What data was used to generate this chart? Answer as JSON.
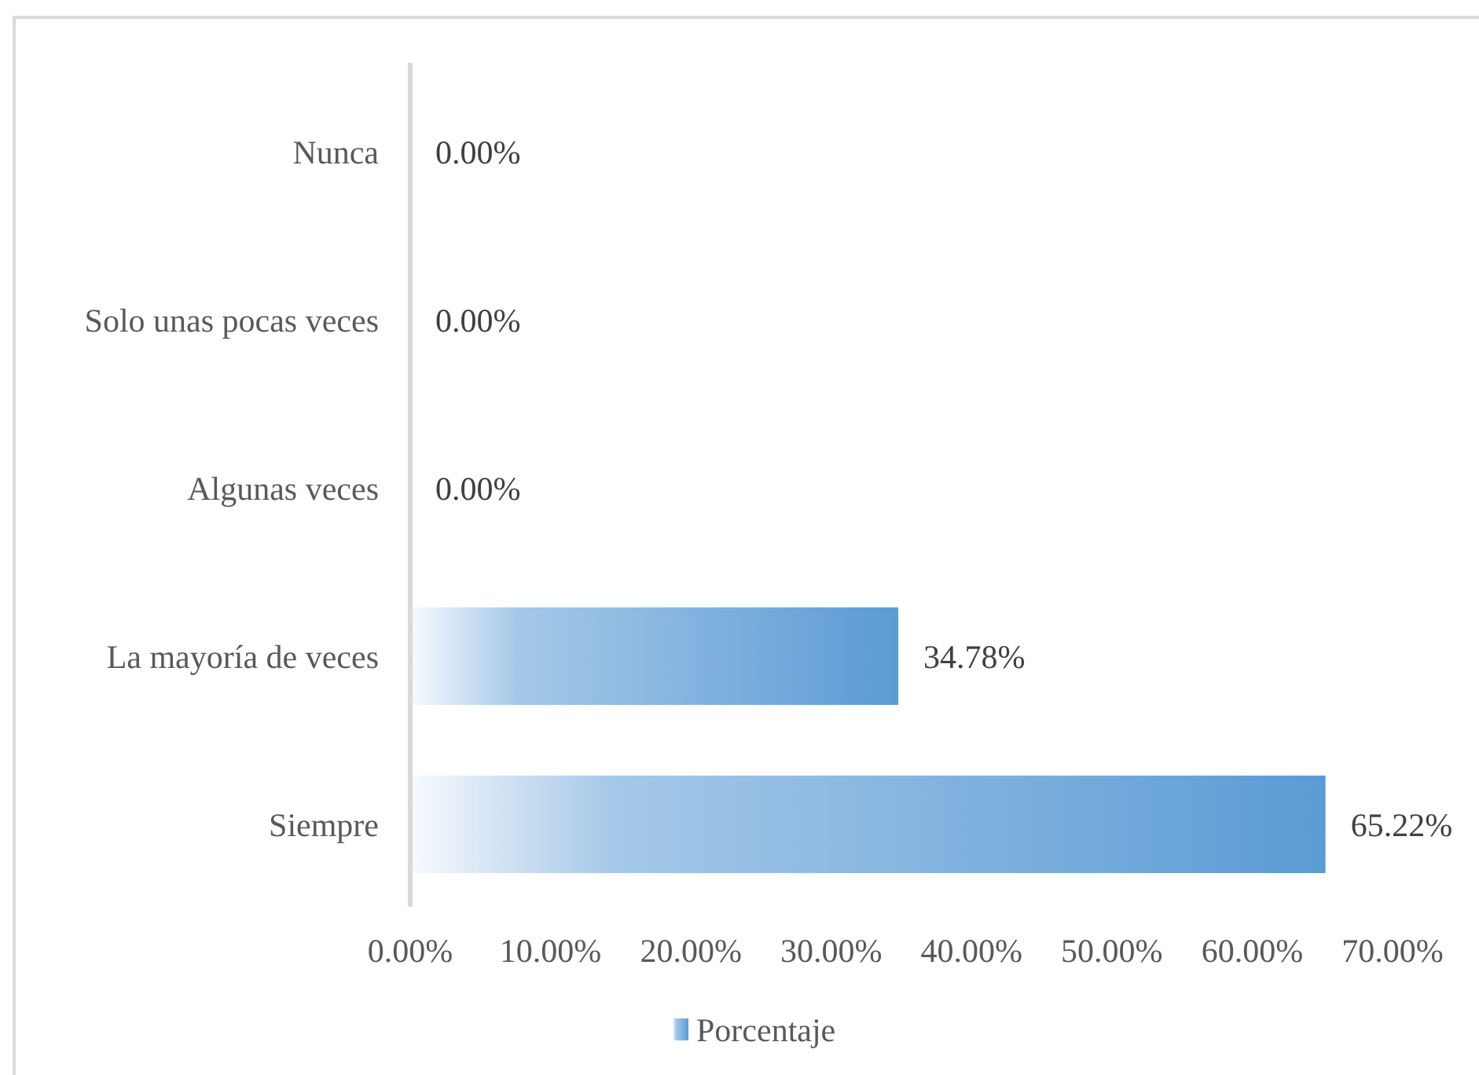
{
  "chart_data": {
    "type": "bar",
    "orientation": "horizontal",
    "categories": [
      "Nunca",
      "Solo unas pocas veces",
      "Algunas veces",
      "La mayoría de veces",
      "Siempre"
    ],
    "series": [
      {
        "name": "Porcentaje",
        "color": "#5b9bd5",
        "values": [
          0,
          0,
          0,
          34.78,
          65.22
        ],
        "value_labels": [
          "0.00%",
          "0.00%",
          "0.00%",
          "34.78%",
          "65.22%"
        ]
      }
    ],
    "xlim": [
      0,
      70
    ],
    "xticks": [
      {
        "value": 0,
        "label": "0.00%"
      },
      {
        "value": 10,
        "label": "10.00%"
      },
      {
        "value": 20,
        "label": "20.00%"
      },
      {
        "value": 30,
        "label": "30.00%"
      },
      {
        "value": 40,
        "label": "40.00%"
      },
      {
        "value": 50,
        "label": "50.00%"
      },
      {
        "value": 60,
        "label": "60.00%"
      },
      {
        "value": 70,
        "label": "70.00%"
      }
    ],
    "legend": "bottom"
  }
}
